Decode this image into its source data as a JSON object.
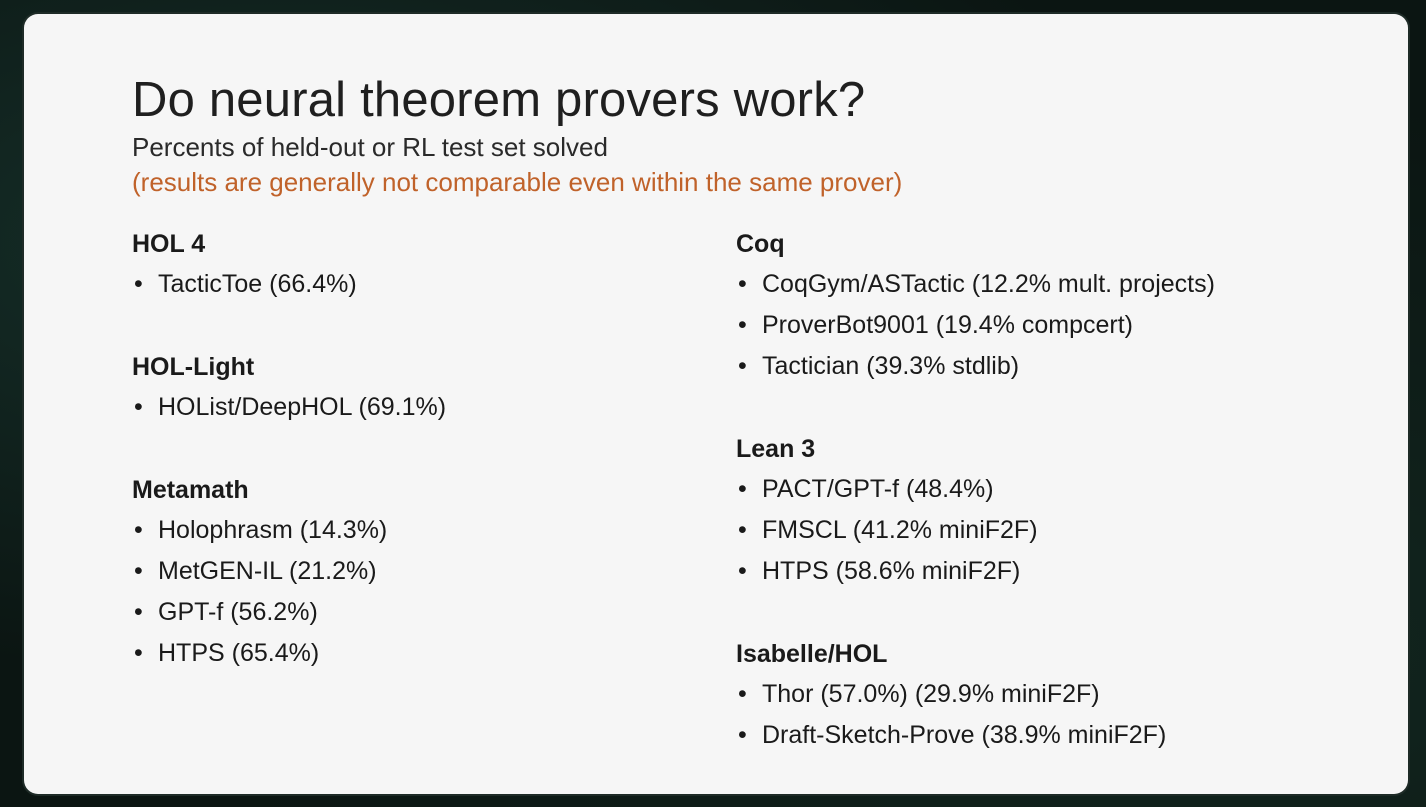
{
  "slide": {
    "title": "Do neural theorem provers work?",
    "subtitle": "Percents of held-out or RL test set solved",
    "note": "(results are generally not comparable even within the same prover)",
    "note_color": "#c0622a",
    "bullet": "•"
  },
  "left_groups": [
    {
      "heading": "HOL 4",
      "items": [
        "TacticToe (66.4%)"
      ]
    },
    {
      "heading": "HOL-Light",
      "items": [
        "HOList/DeepHOL (69.1%)"
      ]
    },
    {
      "heading": "Metamath",
      "items": [
        "Holophrasm (14.3%)",
        "MetGEN-IL (21.2%)",
        "GPT-f (56.2%)",
        "HTPS (65.4%)"
      ]
    }
  ],
  "right_groups": [
    {
      "heading": "Coq",
      "items": [
        "CoqGym/ASTactic (12.2% mult. projects)",
        "ProverBot9001 (19.4% compcert)",
        "Tactician (39.3% stdlib)"
      ]
    },
    {
      "heading": "Lean 3",
      "items": [
        "PACT/GPT-f (48.4%)",
        "FMSCL (41.2% miniF2F)",
        "HTPS (58.6% miniF2F)"
      ]
    },
    {
      "heading": "Isabelle/HOL",
      "items": [
        "Thor (57.0%) (29.9% miniF2F)",
        "Draft-Sketch-Prove (38.9% miniF2F)"
      ]
    }
  ]
}
